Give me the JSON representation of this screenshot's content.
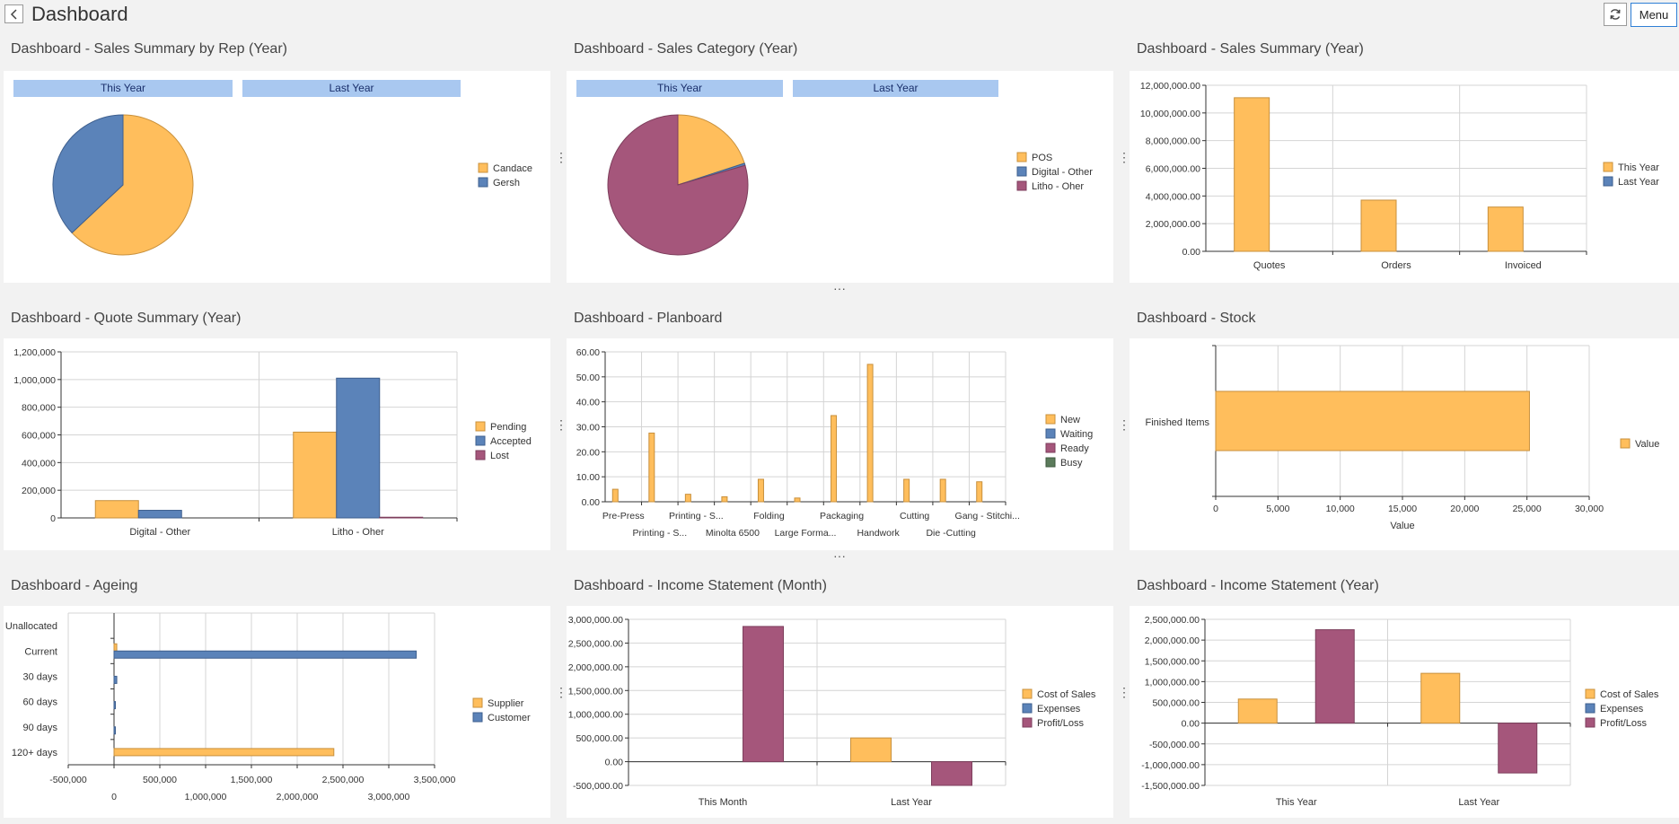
{
  "header": {
    "title": "Dashboard",
    "menu_label": "Menu"
  },
  "colors": {
    "orange": "#ffbe5c",
    "blue": "#5b83b9",
    "maroon": "#a5567b",
    "green": "#5b7b5b",
    "orange_stroke": "#c8903c",
    "blue_stroke": "#3e5f8e",
    "maroon_stroke": "#7d3e5c"
  },
  "panels": {
    "sales_rep": {
      "title": "Dashboard - Sales Summary by Rep (Year)",
      "tabs": [
        "This Year",
        "Last Year"
      ],
      "chart_data": {
        "type": "pie",
        "labels": [
          "Candace",
          "Gersh"
        ],
        "values": [
          63,
          37
        ]
      }
    },
    "sales_category": {
      "title": "Dashboard - Sales Category (Year)",
      "tabs": [
        "This Year",
        "Last Year"
      ],
      "chart_data": {
        "type": "pie",
        "labels": [
          "POS",
          "Digital - Other",
          "Litho - Oher"
        ],
        "values": [
          20,
          0.5,
          79.5
        ]
      }
    },
    "sales_summary": {
      "title": "Dashboard - Sales Summary (Year)",
      "chart_data": {
        "type": "bar",
        "categories": [
          "Quotes",
          "Orders",
          "Invoiced"
        ],
        "series": [
          {
            "name": "This Year",
            "values": [
              11100000,
              3700000,
              3200000
            ]
          },
          {
            "name": "Last Year",
            "values": [
              0,
              0,
              0
            ]
          }
        ],
        "ylim": [
          0,
          12000000
        ],
        "yticks": [
          "12,000,000.00",
          "10,000,000.00",
          "8,000,000.00",
          "6,000,000.00",
          "4,000,000.00",
          "2,000,000.00",
          "0.00"
        ]
      }
    },
    "quote_summary": {
      "title": "Dashboard - Quote Summary (Year)",
      "chart_data": {
        "type": "bar",
        "categories": [
          "Digital - Other",
          "Litho - Oher"
        ],
        "series": [
          {
            "name": "Pending",
            "values": [
              125000,
              620000
            ]
          },
          {
            "name": "Accepted",
            "values": [
              55000,
              1010000
            ]
          },
          {
            "name": "Lost",
            "values": [
              0,
              5000
            ]
          }
        ],
        "ylim": [
          0,
          1200000
        ],
        "yticks": [
          "1,200,000",
          "1,000,000",
          "800,000",
          "600,000",
          "400,000",
          "200,000",
          "0"
        ]
      }
    },
    "planboard": {
      "title": "Dashboard - Planboard",
      "chart_data": {
        "type": "bar",
        "categories": [
          "Pre-Press",
          "Printing - S...",
          "Printing - S...",
          "Minolta 6500",
          "Folding",
          "Large Forma...",
          "Packaging",
          "Handwork",
          "Cutting",
          "Die -Cutting",
          "Gang - Stitchi..."
        ],
        "series": [
          {
            "name": "New",
            "values": [
              5,
              27.5,
              3,
              2,
              9,
              1.5,
              34.5,
              55,
              9,
              9,
              8
            ]
          },
          {
            "name": "Waiting",
            "values": [
              0,
              0,
              0,
              0,
              0,
              0,
              0,
              0,
              0,
              0,
              0
            ]
          },
          {
            "name": "Ready",
            "values": [
              0,
              0,
              0,
              0,
              0,
              0,
              0,
              0,
              0,
              0,
              0
            ]
          },
          {
            "name": "Busy",
            "values": [
              0,
              0,
              0,
              0,
              0,
              0,
              0,
              0,
              0,
              0,
              0
            ]
          }
        ],
        "ylim": [
          0,
          60
        ],
        "yticks": [
          "60.00",
          "50.00",
          "40.00",
          "30.00",
          "20.00",
          "10.00",
          "0.00"
        ]
      }
    },
    "stock": {
      "title": "Dashboard - Stock",
      "chart_data": {
        "type": "bar",
        "orientation": "horizontal",
        "categories": [
          "Finished Items"
        ],
        "series": [
          {
            "name": "Value",
            "values": [
              25200
            ]
          }
        ],
        "xlim": [
          0,
          30000
        ],
        "xlabel": "Value",
        "xticks": [
          "0",
          "5,000",
          "10,000",
          "15,000",
          "20,000",
          "25,000",
          "30,000"
        ]
      }
    },
    "ageing": {
      "title": "Dashboard - Ageing",
      "chart_data": {
        "type": "bar",
        "orientation": "horizontal",
        "categories": [
          "Unallocated",
          "Current",
          "30 days",
          "60 days",
          "90 days",
          "120+ days"
        ],
        "series": [
          {
            "name": "Supplier",
            "values": [
              0,
              30000,
              0,
              0,
              0,
              2400000
            ]
          },
          {
            "name": "Customer",
            "values": [
              0,
              3300000,
              30000,
              5000,
              5000,
              0
            ]
          }
        ],
        "xlim": [
          -500000,
          3500000
        ],
        "xticks_top_row": [
          "-500,000",
          "500,000",
          "1,500,000",
          "2,500,000",
          "3,500,000"
        ],
        "xticks_bottom_row": [
          "0",
          "1,000,000",
          "2,000,000",
          "3,000,000"
        ]
      }
    },
    "income_month": {
      "title": "Dashboard - Income Statement (Month)",
      "chart_data": {
        "type": "bar",
        "categories": [
          "This Month",
          "Last Year"
        ],
        "series": [
          {
            "name": "Cost of Sales",
            "values": [
              0,
              500000
            ]
          },
          {
            "name": "Expenses",
            "values": [
              0,
              0
            ]
          },
          {
            "name": "Profit/Loss",
            "values": [
              2850000,
              -500000
            ]
          }
        ],
        "ylim": [
          -500000,
          3000000
        ],
        "yticks": [
          "3,000,000.00",
          "2,500,000.00",
          "2,000,000.00",
          "1,500,000.00",
          "1,000,000.00",
          "500,000.00",
          "0.00",
          "-500,000.00"
        ]
      }
    },
    "income_year": {
      "title": "Dashboard - Income Statement (Year)",
      "chart_data": {
        "type": "bar",
        "categories": [
          "This Year",
          "Last Year"
        ],
        "series": [
          {
            "name": "Cost of Sales",
            "values": [
              580000,
              1200000
            ]
          },
          {
            "name": "Expenses",
            "values": [
              0,
              0
            ]
          },
          {
            "name": "Profit/Loss",
            "values": [
              2250000,
              -1200000
            ]
          }
        ],
        "ylim": [
          -1500000,
          2500000
        ],
        "yticks": [
          "2,500,000.00",
          "2,000,000.00",
          "1,500,000.00",
          "1,000,000.00",
          "500,000.00",
          "0.00",
          "-500,000.00",
          "-1,000,000.00",
          "-1,500,000.00"
        ]
      }
    }
  }
}
